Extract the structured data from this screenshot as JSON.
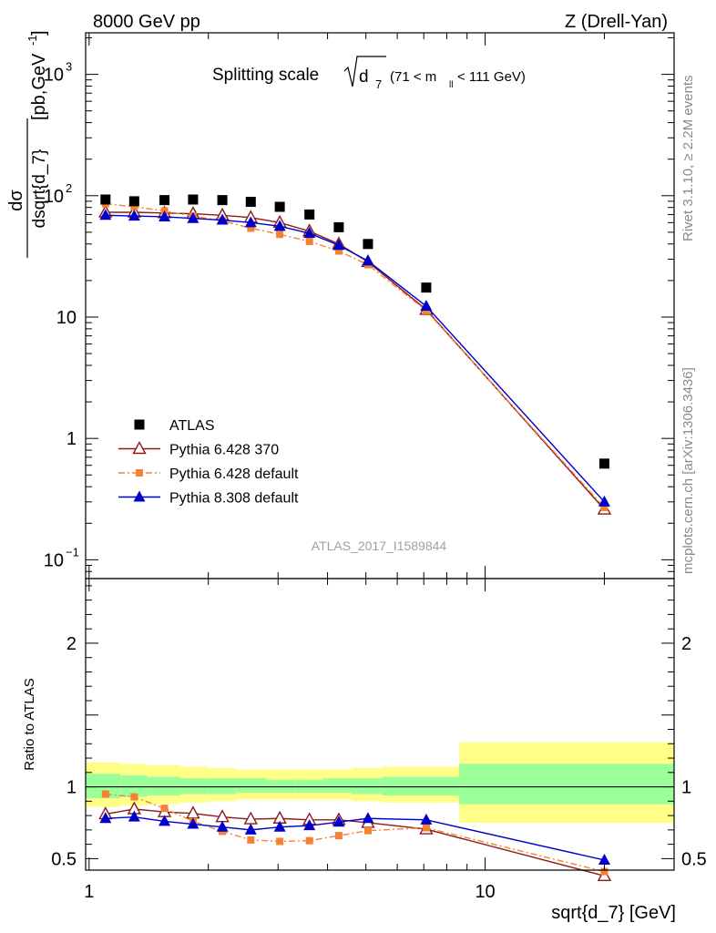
{
  "header": {
    "left": "8000 GeV pp",
    "right": "Z (Drell-Yan)"
  },
  "side": {
    "rivet": "Rivet 3.1.10, ≥ 2.2M events",
    "mcplots": "mcplots.cern.ch [arXiv:1306.3436]"
  },
  "chart_data": [
    {
      "type": "scatter",
      "panel": "main",
      "title_parts": {
        "main": "Splitting scale",
        "symbol": "d",
        "sub": "7",
        "range_a": "(71 < m",
        "range_sub": "ll",
        "range_b": " < 111 GeV)"
      },
      "ylabel_parts": {
        "num": "dσ",
        "den": "dsqrt{d_7}",
        "units_a": "[pb,GeV",
        "units_sup": "-1",
        "units_b": "]"
      },
      "yscale": "log",
      "ylim": [
        0.07,
        2200
      ],
      "xscale": "log",
      "xlim": [
        0.98,
        30
      ],
      "yticks": [
        {
          "v": 0.1,
          "base": "10",
          "exp": "−1"
        },
        {
          "v": 1,
          "base": "1",
          "exp": ""
        },
        {
          "v": 10,
          "base": "10",
          "exp": ""
        },
        {
          "v": 100,
          "base": "10",
          "exp": "2"
        },
        {
          "v": 1000,
          "base": "10",
          "exp": "3"
        }
      ],
      "watermark": "ATLAS_2017_I1589844",
      "legend_position": "lower-left",
      "series": [
        {
          "name": "ATLAS",
          "color": "#000000",
          "marker": "square",
          "line": "none",
          "x": [
            1.1,
            1.3,
            1.55,
            1.83,
            2.17,
            2.56,
            3.03,
            3.6,
            4.27,
            5.06,
            7.1,
            20.0
          ],
          "y": [
            93,
            90,
            92,
            93,
            92,
            89,
            81,
            70,
            55,
            40,
            17.5,
            0.62
          ]
        },
        {
          "name": "Pythia 6.428 370",
          "color": "#8b1a1a",
          "marker": "open-triangle",
          "line": "solid",
          "x": [
            1.1,
            1.3,
            1.55,
            1.83,
            2.17,
            2.56,
            3.03,
            3.6,
            4.27,
            5.06,
            7.1,
            20.0
          ],
          "y": [
            73,
            73,
            72,
            71,
            69,
            66,
            60,
            51,
            40,
            28.5,
            11.5,
            0.26
          ]
        },
        {
          "name": "Pythia 6.428 default",
          "color": "#f58232",
          "marker": "square-small",
          "line": "dashdot",
          "x": [
            1.1,
            1.3,
            1.55,
            1.83,
            2.17,
            2.56,
            3.03,
            3.6,
            4.27,
            5.06,
            7.1,
            20.0
          ],
          "y": [
            86,
            81,
            75,
            68,
            62,
            54,
            48,
            42,
            35,
            27,
            11.3,
            0.27
          ]
        },
        {
          "name": "Pythia 8.308 default",
          "color": "#0000cc",
          "marker": "filled-triangle",
          "line": "solid",
          "x": [
            1.1,
            1.3,
            1.55,
            1.83,
            2.17,
            2.56,
            3.03,
            3.6,
            4.27,
            5.06,
            7.1,
            20.0
          ],
          "y": [
            69,
            68,
            67,
            65,
            63,
            60,
            56,
            49,
            39,
            29,
            12.3,
            0.3
          ]
        }
      ]
    },
    {
      "type": "line",
      "panel": "ratio",
      "ylabel": "Ratio to ATLAS",
      "xlabel": "sqrt{d_7} [GeV]",
      "xscale": "log",
      "xlim": [
        0.98,
        30
      ],
      "ylim": [
        0.42,
        2.45
      ],
      "yticks": [
        {
          "v": 0.5,
          "label": "0.5"
        },
        {
          "v": 1,
          "label": "1"
        },
        {
          "v": 2,
          "label": "2"
        }
      ],
      "xticks": [
        {
          "v": 1,
          "label": "1"
        },
        {
          "v": 10,
          "label": "10"
        }
      ],
      "uncertainty_bands": {
        "edges": [
          0.98,
          1.2,
          1.4,
          1.7,
          2.0,
          2.35,
          2.8,
          3.3,
          3.9,
          4.6,
          5.5,
          8.6,
          30
        ],
        "outer": [
          [
            0.86,
            1.17
          ],
          [
            0.87,
            1.16
          ],
          [
            0.88,
            1.15
          ],
          [
            0.89,
            1.14
          ],
          [
            0.9,
            1.13
          ],
          [
            0.91,
            1.12
          ],
          [
            0.91,
            1.12
          ],
          [
            0.91,
            1.12
          ],
          [
            0.91,
            1.12
          ],
          [
            0.9,
            1.13
          ],
          [
            0.89,
            1.14
          ],
          [
            0.75,
            1.31
          ]
        ],
        "inner": [
          [
            0.92,
            1.09
          ],
          [
            0.93,
            1.08
          ],
          [
            0.94,
            1.07
          ],
          [
            0.95,
            1.06
          ],
          [
            0.95,
            1.06
          ],
          [
            0.96,
            1.06
          ],
          [
            0.96,
            1.05
          ],
          [
            0.96,
            1.05
          ],
          [
            0.96,
            1.06
          ],
          [
            0.95,
            1.06
          ],
          [
            0.94,
            1.07
          ],
          [
            0.88,
            1.16
          ]
        ],
        "outer_color": "#ffff88",
        "inner_color": "#99ff99"
      },
      "series": [
        {
          "name": "Pythia 6.428 370",
          "color": "#8b1a1a",
          "marker": "open-triangle",
          "line": "solid",
          "x": [
            1.1,
            1.3,
            1.55,
            1.83,
            2.17,
            2.56,
            3.03,
            3.6,
            4.27,
            5.06,
            7.1,
            20.0
          ],
          "y": [
            0.81,
            0.845,
            0.825,
            0.815,
            0.79,
            0.775,
            0.78,
            0.77,
            0.77,
            0.75,
            0.705,
            0.38
          ]
        },
        {
          "name": "Pythia 6.428 default",
          "color": "#f58232",
          "marker": "square-small",
          "line": "dashdot",
          "x": [
            1.1,
            1.3,
            1.55,
            1.83,
            2.17,
            2.56,
            3.03,
            3.6,
            4.27,
            5.06,
            7.1,
            20.0
          ],
          "y": [
            0.95,
            0.93,
            0.85,
            0.76,
            0.69,
            0.63,
            0.62,
            0.625,
            0.66,
            0.695,
            0.715,
            0.41
          ]
        },
        {
          "name": "Pythia 8.308 default",
          "color": "#0000cc",
          "marker": "filled-triangle",
          "line": "solid",
          "x": [
            1.1,
            1.3,
            1.55,
            1.83,
            2.17,
            2.56,
            3.03,
            3.6,
            4.27,
            5.06,
            7.1,
            20.0
          ],
          "y": [
            0.78,
            0.79,
            0.76,
            0.74,
            0.72,
            0.7,
            0.72,
            0.73,
            0.755,
            0.78,
            0.77,
            0.49
          ]
        }
      ]
    }
  ]
}
